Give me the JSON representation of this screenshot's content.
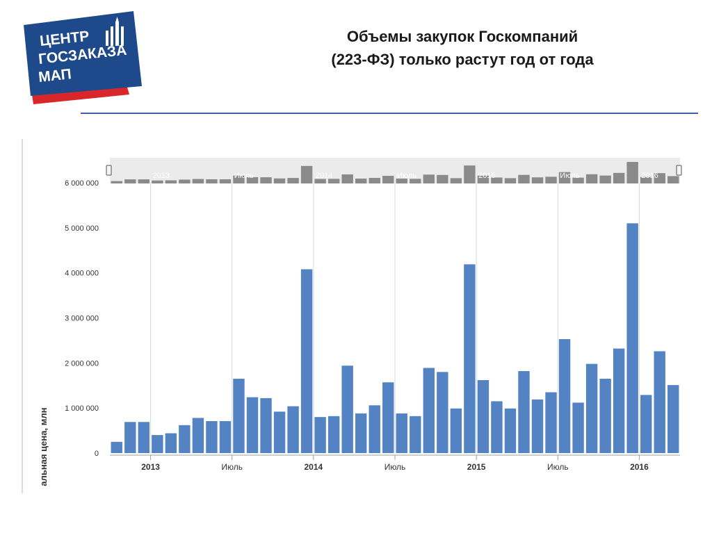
{
  "header": {
    "logo_lines": [
      "ЦЕНТР",
      "ГОСЗАКАЗА",
      "МАП"
    ],
    "title_line1": "Объемы закупок Госкомпаний",
    "title_line2": "(223-ФЗ) только растут год от года"
  },
  "colors": {
    "bar": "#5383c2",
    "navigator_bar": "#8a8a8a",
    "navigator_bg": "#ebebeb",
    "logo_blue": "#1e4a8c",
    "logo_red": "#d9262b",
    "rule": "#3f5fa8"
  },
  "chart_data": {
    "type": "bar",
    "ylabel": "Начальная цена, млн",
    "ylim": [
      0,
      6000000
    ],
    "y_ticks": [
      "0",
      "1 000 000",
      "2 000 000",
      "3 000 000",
      "4 000 000",
      "5 000 000",
      "6 000 000"
    ],
    "x_ticks": [
      {
        "label": "2013",
        "index": 3,
        "year": true
      },
      {
        "label": "Июль",
        "index": 9,
        "year": false
      },
      {
        "label": "2014",
        "index": 15,
        "year": true
      },
      {
        "label": "Июль",
        "index": 21,
        "year": false
      },
      {
        "label": "2015",
        "index": 27,
        "year": true
      },
      {
        "label": "Июль",
        "index": 33,
        "year": false
      },
      {
        "label": "2016",
        "index": 39,
        "year": true
      }
    ],
    "navigator_labels": [
      "2013",
      "Июль",
      "2014",
      "Июль",
      "2015",
      "Июль",
      "2016"
    ],
    "values": [
      250000,
      690000,
      690000,
      400000,
      440000,
      620000,
      780000,
      710000,
      710000,
      1650000,
      1240000,
      1220000,
      920000,
      1040000,
      4080000,
      800000,
      820000,
      1940000,
      880000,
      1060000,
      1570000,
      880000,
      820000,
      1890000,
      1800000,
      990000,
      4190000,
      1620000,
      1150000,
      990000,
      1820000,
      1190000,
      1350000,
      2530000,
      1120000,
      1980000,
      1650000,
      2320000,
      5100000,
      1290000,
      2260000,
      1510000
    ],
    "grid": "vertical"
  }
}
